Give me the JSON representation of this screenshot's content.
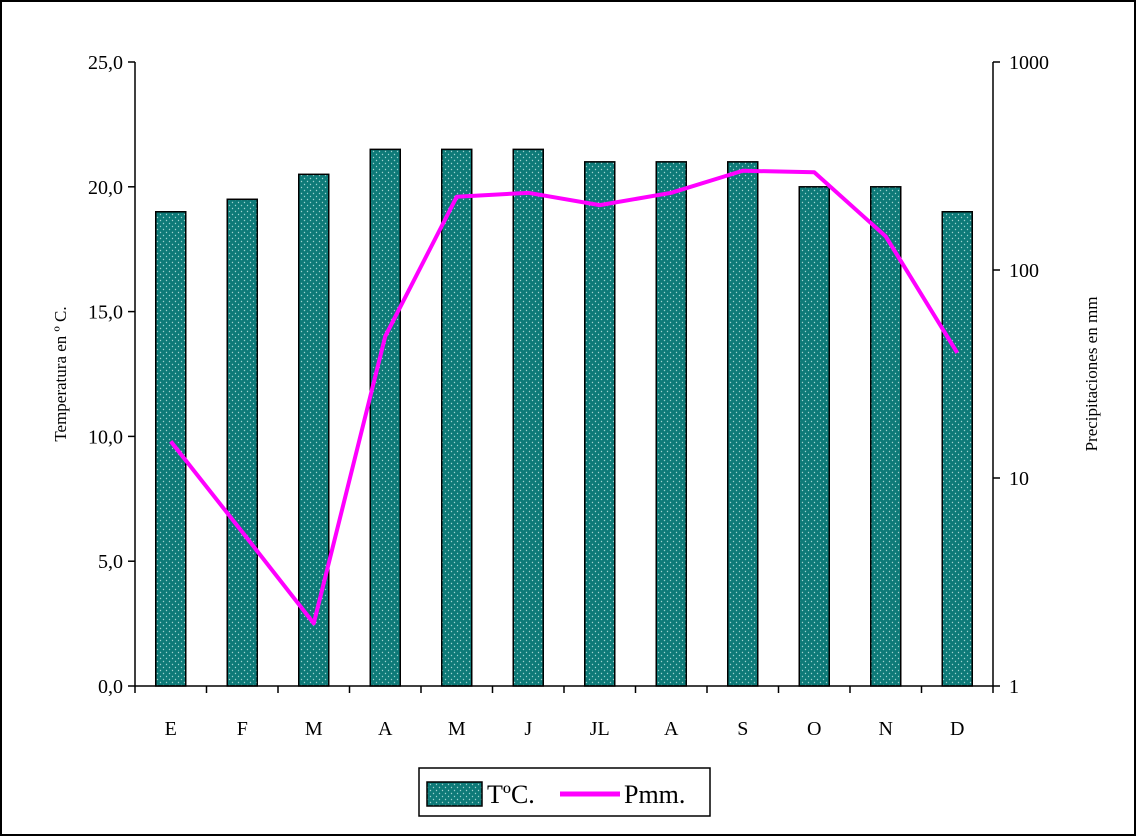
{
  "chart_data": {
    "type": "bar+line",
    "categories": [
      "E",
      "F",
      "M",
      "A",
      "M",
      "J",
      "JL",
      "A",
      "S",
      "O",
      "N",
      "D"
    ],
    "series": [
      {
        "name": "TºC.",
        "type": "bar",
        "axis": "left",
        "color": "#0e7a78",
        "pattern": "dotted",
        "values": [
          19.0,
          19.5,
          20.5,
          21.5,
          21.5,
          21.5,
          21.0,
          21.0,
          21.0,
          20.0,
          20.0,
          19.0
        ]
      },
      {
        "name": "Pmm.",
        "type": "line",
        "axis": "right",
        "color": "#ff00ff",
        "values": [
          15,
          5.5,
          2,
          48,
          225,
          235,
          205,
          235,
          300,
          295,
          145,
          40
        ]
      }
    ],
    "y_left": {
      "label": "Temperatura en º C.",
      "ylim": [
        0,
        25
      ],
      "ticks": [
        "0,0",
        "5,0",
        "10,0",
        "15,0",
        "20,0",
        "25,0"
      ]
    },
    "y_right": {
      "label": "Precipitaciones en mm",
      "scale": "log",
      "ylim": [
        1,
        1000
      ],
      "ticks": [
        "1",
        "10",
        "100",
        "1000"
      ]
    },
    "grid": false,
    "legend_position": "bottom"
  }
}
